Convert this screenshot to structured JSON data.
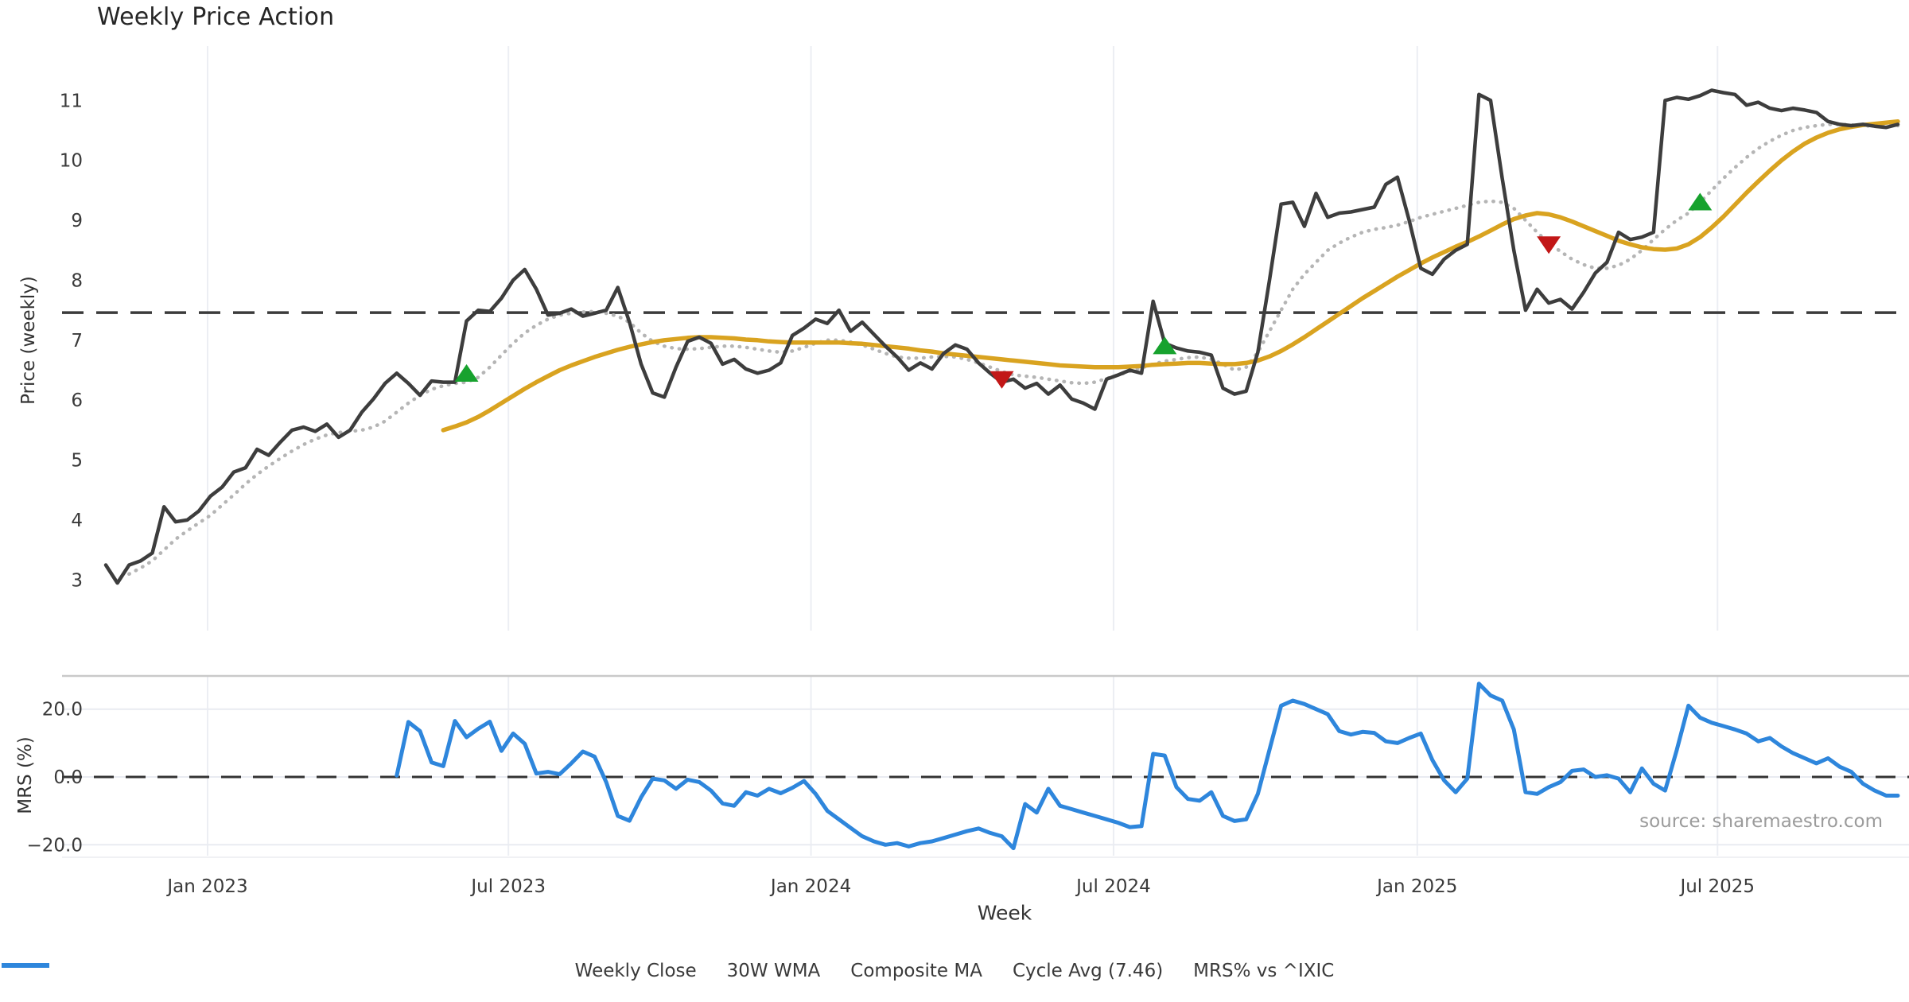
{
  "title": "Weekly Price Action",
  "source": "source: sharemaestro.com",
  "axes": {
    "price": {
      "label": "Price (weekly)",
      "ticks": [
        {
          "label": "3",
          "value": 3
        },
        {
          "label": "4",
          "value": 4
        },
        {
          "label": "5",
          "value": 5
        },
        {
          "label": "6",
          "value": 6
        },
        {
          "label": "7",
          "value": 7
        },
        {
          "label": "8",
          "value": 8
        },
        {
          "label": "9",
          "value": 9
        },
        {
          "label": "10",
          "value": 10
        },
        {
          "label": "11",
          "value": 11
        }
      ]
    },
    "mrs": {
      "label": "MRS (%)",
      "ticks": [
        {
          "label": "20.0",
          "value": 20
        },
        {
          "label": "0.0",
          "value": 0
        },
        {
          "label": "−20.0",
          "value": -20
        }
      ]
    },
    "x": {
      "label": "Week",
      "ticks": [
        {
          "label": "Jan 2023",
          "week": 8.75
        },
        {
          "label": "Jul 2023",
          "week": 34.6
        },
        {
          "label": "Jan 2024",
          "week": 60.6
        },
        {
          "label": "Jul 2024",
          "week": 86.6
        },
        {
          "label": "Jan 2025",
          "week": 112.7
        },
        {
          "label": "Jul 2025",
          "week": 138.5
        }
      ]
    }
  },
  "legend": {
    "items": [
      {
        "id": "weekly-close",
        "label": "Weekly Close",
        "kind": "solid",
        "color": "#3d3d3d"
      },
      {
        "id": "wma-30w",
        "label": "30W WMA",
        "kind": "solid",
        "color": "#d9a320"
      },
      {
        "id": "composite-ma",
        "label": "Composite MA",
        "kind": "dotted",
        "color": "#b5b5b5"
      },
      {
        "id": "cycle-avg",
        "label": "Cycle Avg (7.46)",
        "kind": "dashed",
        "color": "#3b3b3b"
      },
      {
        "id": "mrs-ixic",
        "label": "MRS% vs ^IXIC",
        "kind": "solid",
        "color": "#2e86dc"
      }
    ]
  },
  "colors": {
    "weekly_close": "#3d3d3d",
    "wma": "#d9a320",
    "composite": "#b5b5b5",
    "cycle_avg": "#3b3b3b",
    "mrs": "#2e86dc",
    "buy": "#17a22e",
    "sell": "#c21717",
    "grid": "#eceef3",
    "panel_border": "#c9c9c9",
    "tick_text": "#3a3a3a"
  },
  "chart_data": {
    "type": "line",
    "panels": [
      {
        "name": "price",
        "ylabel": "Price (weekly)",
        "ylim": [
          2.6,
          11.6
        ],
        "grid": "vertical-only",
        "cycle_avg": 7.46,
        "series": [
          {
            "name": "Weekly Close",
            "start_week": 0,
            "values": [
              3.25,
              2.95,
              3.25,
              3.32,
              3.45,
              4.22,
              3.97,
              4.0,
              4.15,
              4.4,
              4.55,
              4.8,
              4.87,
              5.18,
              5.08,
              5.3,
              5.5,
              5.55,
              5.48,
              5.6,
              5.38,
              5.5,
              5.8,
              6.02,
              6.28,
              6.45,
              6.28,
              6.08,
              6.32,
              6.3,
              6.3,
              7.32,
              7.5,
              7.48,
              7.7,
              8.0,
              8.18,
              7.85,
              7.42,
              7.45,
              7.52,
              7.4,
              7.45,
              7.5,
              7.88,
              7.3,
              6.6,
              6.12,
              6.05,
              6.55,
              6.98,
              7.05,
              6.95,
              6.6,
              6.68,
              6.52,
              6.45,
              6.5,
              6.62,
              7.08,
              7.2,
              7.35,
              7.28,
              7.5,
              7.15,
              7.3,
              7.1,
              6.9,
              6.72,
              6.5,
              6.62,
              6.52,
              6.78,
              6.92,
              6.85,
              6.62,
              6.45,
              6.3,
              6.35,
              6.2,
              6.28,
              6.1,
              6.25,
              6.02,
              5.95,
              5.85,
              6.35,
              6.42,
              6.5,
              6.45,
              7.65,
              6.95,
              6.87,
              6.82,
              6.8,
              6.75,
              6.2,
              6.1,
              6.15,
              6.8,
              8.0,
              9.27,
              9.3,
              8.9,
              9.45,
              9.05,
              9.12,
              9.14,
              9.18,
              9.22,
              9.6,
              9.72,
              9.0,
              8.2,
              8.1,
              8.35,
              8.5,
              8.6,
              11.1,
              11.0,
              9.7,
              8.5,
              7.5,
              7.85,
              7.62,
              7.68,
              7.52,
              7.8,
              8.12,
              8.3,
              8.8,
              8.68,
              8.72,
              8.8,
              11.0,
              11.05,
              11.02,
              11.08,
              11.17,
              11.13,
              11.1,
              10.92,
              10.97,
              10.87,
              10.83,
              10.87,
              10.84,
              10.8,
              10.65,
              10.6,
              10.58,
              10.6,
              10.57,
              10.55,
              10.6
            ]
          },
          {
            "name": "30W WMA",
            "start_week": 29,
            "values": [
              5.5,
              5.56,
              5.63,
              5.72,
              5.83,
              5.95,
              6.07,
              6.19,
              6.3,
              6.4,
              6.5,
              6.58,
              6.65,
              6.72,
              6.78,
              6.84,
              6.89,
              6.93,
              6.97,
              7.0,
              7.02,
              7.04,
              7.05,
              7.05,
              7.04,
              7.03,
              7.01,
              7.0,
              6.98,
              6.97,
              6.96,
              6.96,
              6.96,
              6.96,
              6.96,
              6.95,
              6.94,
              6.92,
              6.9,
              6.88,
              6.86,
              6.83,
              6.81,
              6.78,
              6.76,
              6.74,
              6.72,
              6.7,
              6.68,
              6.66,
              6.64,
              6.62,
              6.6,
              6.58,
              6.57,
              6.56,
              6.55,
              6.55,
              6.55,
              6.56,
              6.57,
              6.59,
              6.6,
              6.61,
              6.62,
              6.62,
              6.61,
              6.6,
              6.6,
              6.62,
              6.66,
              6.73,
              6.82,
              6.93,
              7.05,
              7.18,
              7.31,
              7.44,
              7.57,
              7.7,
              7.82,
              7.94,
              8.06,
              8.17,
              8.28,
              8.38,
              8.47,
              8.56,
              8.64,
              8.73,
              8.83,
              8.93,
              9.02,
              9.08,
              9.12,
              9.1,
              9.05,
              8.98,
              8.9,
              8.82,
              8.74,
              8.66,
              8.6,
              8.55,
              8.52,
              8.51,
              8.53,
              8.6,
              8.72,
              8.88,
              9.06,
              9.26,
              9.46,
              9.65,
              9.83,
              10.0,
              10.15,
              10.28,
              10.38,
              10.46,
              10.52,
              10.56,
              10.59,
              10.61,
              10.63,
              10.65
            ]
          },
          {
            "name": "Composite MA",
            "start_week": 2,
            "values": [
              3.1,
              3.2,
              3.32,
              3.5,
              3.68,
              3.82,
              3.95,
              4.08,
              4.25,
              4.42,
              4.6,
              4.76,
              4.9,
              5.03,
              5.15,
              5.26,
              5.35,
              5.42,
              5.46,
              5.48,
              5.5,
              5.55,
              5.65,
              5.8,
              5.95,
              6.08,
              6.18,
              6.24,
              6.28,
              6.3,
              6.38,
              6.55,
              6.75,
              6.95,
              7.12,
              7.25,
              7.35,
              7.42,
              7.45,
              7.47,
              7.48,
              7.45,
              7.4,
              7.3,
              7.12,
              6.98,
              6.9,
              6.86,
              6.85,
              6.86,
              6.88,
              6.9,
              6.9,
              6.88,
              6.85,
              6.82,
              6.8,
              6.82,
              6.88,
              6.95,
              7.0,
              7.0,
              6.97,
              6.92,
              6.85,
              6.78,
              6.72,
              6.7,
              6.7,
              6.72,
              6.73,
              6.72,
              6.68,
              6.62,
              6.55,
              6.48,
              6.42,
              6.4,
              6.38,
              6.35,
              6.32,
              6.29,
              6.28,
              6.3,
              6.36,
              6.42,
              6.48,
              6.54,
              6.6,
              6.65,
              6.68,
              6.71,
              6.72,
              6.68,
              6.6,
              6.5,
              6.55,
              6.8,
              7.15,
              7.5,
              7.85,
              8.1,
              8.3,
              8.5,
              8.62,
              8.72,
              8.8,
              8.85,
              8.88,
              8.92,
              8.98,
              9.05,
              9.1,
              9.15,
              9.2,
              9.25,
              9.3,
              9.32,
              9.3,
              9.2,
              9.0,
              8.8,
              8.62,
              8.48,
              8.35,
              8.26,
              8.2,
              8.2,
              8.25,
              8.35,
              8.5,
              8.68,
              8.85,
              9.0,
              9.12,
              9.3,
              9.5,
              9.7,
              9.88,
              10.05,
              10.2,
              10.32,
              10.42,
              10.5,
              10.55,
              10.58,
              10.6,
              10.6,
              10.59,
              10.58,
              10.57,
              10.57,
              10.58
            ]
          }
        ],
        "markers": [
          {
            "week": 31,
            "price": 6.44,
            "type": "buy"
          },
          {
            "week": 77,
            "price": 6.35,
            "type": "sell"
          },
          {
            "week": 91,
            "price": 6.9,
            "type": "buy"
          },
          {
            "week": 124,
            "price": 8.6,
            "type": "sell"
          },
          {
            "week": 137,
            "price": 9.3,
            "type": "buy"
          }
        ]
      },
      {
        "name": "mrs",
        "ylabel": "MRS (%)",
        "ylim": [
          -27,
          30
        ],
        "zero_line_dashed": true,
        "series": [
          {
            "name": "MRS% vs ^IXIC",
            "start_week": 25,
            "values": [
              0.4,
              16.2,
              13.5,
              4.3,
              3.2,
              16.5,
              11.7,
              14.2,
              16.3,
              7.7,
              12.8,
              9.8,
              1.0,
              1.5,
              0.8,
              4.0,
              7.5,
              6.0,
              -1.5,
              -11.5,
              -12.9,
              -6.0,
              -0.5,
              -1.0,
              -3.5,
              -0.8,
              -1.5,
              -4.0,
              -7.8,
              -8.5,
              -4.5,
              -5.5,
              -3.5,
              -4.8,
              -3.2,
              -1.2,
              -5.0,
              -10.0,
              -12.5,
              -15.0,
              -17.5,
              -19.0,
              -20.0,
              -19.5,
              -20.5,
              -19.5,
              -19.0,
              -18.0,
              -17.0,
              -16.0,
              -15.2,
              -16.5,
              -17.5,
              -21.0,
              -8.0,
              -10.5,
              -3.5,
              -8.5,
              -9.5,
              -10.5,
              -11.5,
              -12.5,
              -13.5,
              -14.8,
              -14.5,
              6.8,
              6.3,
              -3.0,
              -6.5,
              -7.0,
              -4.5,
              -11.5,
              -13.0,
              -12.5,
              -5.0,
              8.0,
              21.0,
              22.5,
              21.5,
              20.0,
              18.5,
              13.5,
              12.5,
              13.3,
              13.0,
              10.5,
              10.0,
              11.5,
              12.8,
              5.0,
              -1.0,
              -4.5,
              -0.5,
              27.5,
              24.0,
              22.5,
              14.0,
              -4.5,
              -5.0,
              -3.0,
              -1.5,
              1.8,
              2.2,
              0.0,
              0.5,
              -0.5,
              -4.5,
              2.5,
              -2.0,
              -4.0,
              8.0,
              21.0,
              17.5,
              16.0,
              15.0,
              14.0,
              12.8,
              10.5,
              11.5,
              9.0,
              7.0,
              5.5,
              4.0,
              5.5,
              3.0,
              1.5,
              -2.0,
              -4.0,
              -5.5,
              -5.5
            ]
          }
        ]
      }
    ]
  }
}
